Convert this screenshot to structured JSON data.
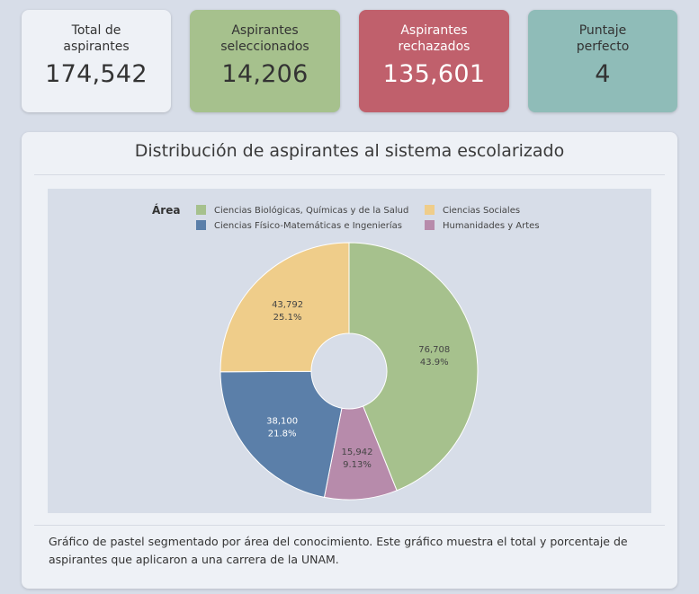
{
  "stats": [
    {
      "label_line1": "Total de",
      "label_line2": "aspirantes",
      "value": "174,542",
      "bg": "#eef1f6",
      "fg": "#333333"
    },
    {
      "label_line1": "Aspirantes",
      "label_line2": "seleccionados",
      "value": "14,206",
      "bg": "#a6c18d",
      "fg": "#333333"
    },
    {
      "label_line1": "Aspirantes",
      "label_line2": "rechazados",
      "value": "135,601",
      "bg": "#c0606c",
      "fg": "#ffffff"
    },
    {
      "label_line1": "Puntaje",
      "label_line2": "perfecto",
      "value": "4",
      "bg": "#8fbcb8",
      "fg": "#333333"
    }
  ],
  "panel": {
    "title": "Distribución de aspirantes al sistema escolarizado",
    "caption": "Gráfico de pastel segmentado por área del conocimiento. Este gráfico muestra el total y porcentaje de aspirantes que aplicaron a una carrera de la UNAM."
  },
  "chart_data": {
    "type": "pie",
    "donut": true,
    "legend_title": "Área",
    "legend_position": "top",
    "slices": [
      {
        "label": "Ciencias Biológicas, Químicas y de la Salud",
        "value": 76708,
        "value_label": "76,708",
        "percent_label": "43.9%",
        "color": "#a6c18d"
      },
      {
        "label": "Humanidades y Artes",
        "value": 15942,
        "value_label": "15,942",
        "percent_label": "9.13%",
        "color": "#b78bab"
      },
      {
        "label": "Ciencias Físico-Matemáticas e Ingenierías",
        "value": 38100,
        "value_label": "38,100",
        "percent_label": "21.8%",
        "color": "#5b7fa9"
      },
      {
        "label": "Ciencias Sociales",
        "value": 43792,
        "value_label": "43,792",
        "percent_label": "25.1%",
        "color": "#efcd8a"
      }
    ]
  }
}
